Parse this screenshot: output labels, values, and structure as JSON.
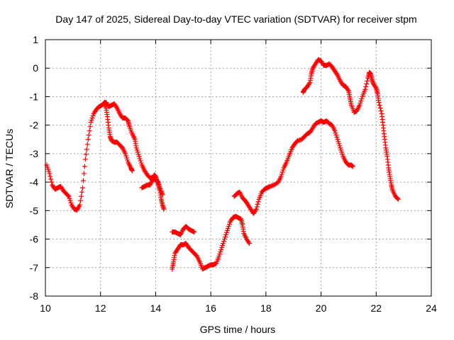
{
  "chart_data": {
    "type": "scatter",
    "title": "Day 147 of 2025, Sidereal Day-to-day VTEC variation (SDTVAR) for receiver stpm",
    "xlabel": "GPS time / hours",
    "ylabel": "SDTVAR / TECUs",
    "xlim": [
      10,
      24
    ],
    "ylim": [
      -8,
      1
    ],
    "xticks": [
      10,
      12,
      14,
      16,
      18,
      20,
      22,
      24
    ],
    "yticks": [
      1,
      0,
      -1,
      -2,
      -3,
      -4,
      -5,
      -6,
      -7,
      -8
    ],
    "grid": true,
    "marker": "plus",
    "color": "#ff0000",
    "series": [
      {
        "name": "seg1",
        "points": [
          [
            10.05,
            -3.4
          ],
          [
            10.15,
            -3.7
          ],
          [
            10.25,
            -4.1
          ],
          [
            10.35,
            -4.25
          ],
          [
            10.45,
            -4.2
          ],
          [
            10.55,
            -4.15
          ],
          [
            10.65,
            -4.3
          ],
          [
            10.75,
            -4.4
          ],
          [
            10.85,
            -4.5
          ],
          [
            10.95,
            -4.8
          ],
          [
            11.05,
            -4.95
          ],
          [
            11.15,
            -4.98
          ],
          [
            11.25,
            -4.8
          ],
          [
            11.35,
            -4.2
          ],
          [
            11.45,
            -3.2
          ],
          [
            11.55,
            -2.5
          ],
          [
            11.65,
            -1.9
          ],
          [
            11.75,
            -1.6
          ],
          [
            11.85,
            -1.45
          ],
          [
            11.95,
            -1.35
          ],
          [
            12.05,
            -1.3
          ],
          [
            12.15,
            -1.2
          ],
          [
            12.2,
            -1.4
          ],
          [
            12.25,
            -1.7
          ],
          [
            12.3,
            -2.1
          ],
          [
            12.35,
            -2.4
          ],
          [
            12.4,
            -2.55
          ],
          [
            12.5,
            -2.6
          ],
          [
            12.6,
            -2.6
          ],
          [
            12.7,
            -2.7
          ],
          [
            12.8,
            -2.8
          ],
          [
            12.9,
            -3.0
          ],
          [
            13.0,
            -3.3
          ],
          [
            13.1,
            -3.5
          ],
          [
            13.15,
            -3.6
          ]
        ]
      },
      {
        "name": "seg2",
        "points": [
          [
            12.1,
            -1.25
          ],
          [
            12.2,
            -1.2
          ],
          [
            12.3,
            -1.35
          ],
          [
            12.4,
            -1.3
          ],
          [
            12.5,
            -1.25
          ],
          [
            12.6,
            -1.4
          ],
          [
            12.7,
            -1.6
          ],
          [
            12.8,
            -1.75
          ],
          [
            12.9,
            -1.75
          ],
          [
            13.0,
            -1.85
          ],
          [
            13.05,
            -2.05
          ],
          [
            13.15,
            -2.3
          ],
          [
            13.25,
            -2.5
          ],
          [
            13.3,
            -2.8
          ],
          [
            13.4,
            -3.1
          ],
          [
            13.5,
            -3.4
          ],
          [
            13.6,
            -3.6
          ],
          [
            13.7,
            -3.75
          ],
          [
            13.8,
            -3.85
          ],
          [
            13.9,
            -3.85
          ],
          [
            13.95,
            -3.75
          ],
          [
            14.0,
            -3.8
          ],
          [
            14.05,
            -3.95
          ],
          [
            14.1,
            -4.1
          ],
          [
            14.15,
            -4.3
          ],
          [
            14.2,
            -4.6
          ],
          [
            14.25,
            -4.8
          ],
          [
            14.3,
            -4.95
          ]
        ]
      },
      {
        "name": "seg3",
        "points": [
          [
            13.5,
            -4.2
          ],
          [
            13.6,
            -4.15
          ],
          [
            13.7,
            -4.1
          ],
          [
            13.8,
            -4.1
          ],
          [
            13.9,
            -3.9
          ],
          [
            14.0,
            -3.9
          ],
          [
            14.1,
            -4.0
          ],
          [
            14.2,
            -4.3
          ],
          [
            14.25,
            -4.45
          ]
        ]
      },
      {
        "name": "seg4",
        "points": [
          [
            14.6,
            -5.75
          ],
          [
            14.7,
            -5.75
          ],
          [
            14.8,
            -5.8
          ],
          [
            14.9,
            -5.85
          ],
          [
            15.0,
            -5.65
          ],
          [
            15.1,
            -5.55
          ],
          [
            15.2,
            -5.65
          ],
          [
            15.3,
            -5.7
          ],
          [
            15.4,
            -5.75
          ]
        ]
      },
      {
        "name": "seg5",
        "points": [
          [
            14.6,
            -7.05
          ],
          [
            14.65,
            -6.8
          ],
          [
            14.7,
            -6.5
          ],
          [
            14.8,
            -6.35
          ],
          [
            14.9,
            -6.2
          ],
          [
            15.0,
            -6.2
          ],
          [
            15.1,
            -6.15
          ],
          [
            15.2,
            -6.3
          ],
          [
            15.3,
            -6.4
          ],
          [
            15.4,
            -6.5
          ],
          [
            15.5,
            -6.6
          ],
          [
            15.6,
            -6.8
          ],
          [
            15.7,
            -7.05
          ],
          [
            15.8,
            -7.0
          ],
          [
            15.9,
            -6.95
          ],
          [
            16.0,
            -6.9
          ],
          [
            16.1,
            -6.9
          ],
          [
            16.2,
            -6.85
          ],
          [
            16.3,
            -6.6
          ],
          [
            16.4,
            -6.3
          ],
          [
            16.5,
            -6.0
          ],
          [
            16.6,
            -5.7
          ],
          [
            16.7,
            -5.4
          ],
          [
            16.8,
            -5.25
          ],
          [
            16.9,
            -5.2
          ],
          [
            17.0,
            -5.25
          ],
          [
            17.1,
            -5.3
          ],
          [
            17.15,
            -5.5
          ],
          [
            17.2,
            -5.8
          ],
          [
            17.3,
            -6.0
          ],
          [
            17.4,
            -6.15
          ]
        ]
      },
      {
        "name": "seg6",
        "points": [
          [
            16.85,
            -4.5
          ],
          [
            16.95,
            -4.4
          ],
          [
            17.05,
            -4.35
          ],
          [
            17.15,
            -4.55
          ],
          [
            17.25,
            -4.65
          ],
          [
            17.35,
            -4.8
          ],
          [
            17.45,
            -4.95
          ],
          [
            17.55,
            -5.1
          ],
          [
            17.65,
            -4.95
          ],
          [
            17.75,
            -4.6
          ],
          [
            17.85,
            -4.35
          ],
          [
            17.95,
            -4.25
          ],
          [
            18.05,
            -4.2
          ],
          [
            18.15,
            -4.15
          ],
          [
            18.3,
            -4.1
          ],
          [
            18.45,
            -4.0
          ],
          [
            18.55,
            -3.8
          ],
          [
            18.65,
            -3.5
          ],
          [
            18.75,
            -3.3
          ],
          [
            18.85,
            -3.05
          ],
          [
            18.95,
            -2.8
          ],
          [
            19.05,
            -2.65
          ],
          [
            19.15,
            -2.55
          ],
          [
            19.3,
            -2.5
          ],
          [
            19.4,
            -2.4
          ],
          [
            19.5,
            -2.3
          ],
          [
            19.6,
            -2.25
          ],
          [
            19.7,
            -2.1
          ],
          [
            19.8,
            -1.95
          ],
          [
            19.9,
            -1.9
          ],
          [
            20.0,
            -1.85
          ],
          [
            20.1,
            -1.9
          ],
          [
            20.2,
            -1.85
          ],
          [
            20.3,
            -1.95
          ],
          [
            20.4,
            -2.0
          ],
          [
            20.5,
            -2.2
          ],
          [
            20.6,
            -2.5
          ],
          [
            20.7,
            -2.8
          ],
          [
            20.8,
            -3.1
          ],
          [
            20.9,
            -3.3
          ],
          [
            21.0,
            -3.4
          ],
          [
            21.1,
            -3.4
          ],
          [
            21.15,
            -3.45
          ]
        ]
      },
      {
        "name": "seg7",
        "points": [
          [
            19.35,
            -0.85
          ],
          [
            19.4,
            -0.75
          ],
          [
            19.5,
            -0.65
          ],
          [
            19.6,
            -0.5
          ],
          [
            19.65,
            -0.2
          ],
          [
            19.7,
            0.0
          ],
          [
            19.8,
            0.15
          ],
          [
            19.9,
            0.3
          ],
          [
            20.0,
            0.25
          ],
          [
            20.1,
            0.1
          ],
          [
            20.2,
            0.1
          ],
          [
            20.3,
            0.15
          ],
          [
            20.4,
            0.05
          ],
          [
            20.5,
            -0.1
          ],
          [
            20.6,
            -0.25
          ],
          [
            20.7,
            -0.45
          ],
          [
            20.8,
            -0.6
          ],
          [
            20.9,
            -0.65
          ],
          [
            21.0,
            -0.8
          ],
          [
            21.05,
            -1.05
          ],
          [
            21.1,
            -1.3
          ],
          [
            21.2,
            -1.55
          ],
          [
            21.3,
            -1.5
          ],
          [
            21.4,
            -1.3
          ],
          [
            21.5,
            -1.0
          ],
          [
            21.6,
            -0.75
          ],
          [
            21.7,
            -0.35
          ],
          [
            21.75,
            -0.15
          ],
          [
            21.8,
            -0.2
          ],
          [
            21.85,
            -0.4
          ],
          [
            21.9,
            -0.55
          ],
          [
            22.0,
            -0.7
          ],
          [
            22.05,
            -0.9
          ],
          [
            22.1,
            -1.2
          ],
          [
            22.2,
            -1.6
          ],
          [
            22.25,
            -2.0
          ],
          [
            22.3,
            -2.4
          ],
          [
            22.35,
            -2.8
          ],
          [
            22.4,
            -3.1
          ],
          [
            22.45,
            -3.5
          ],
          [
            22.5,
            -3.8
          ],
          [
            22.55,
            -4.1
          ],
          [
            22.6,
            -4.3
          ],
          [
            22.7,
            -4.5
          ],
          [
            22.8,
            -4.6
          ]
        ]
      }
    ]
  }
}
